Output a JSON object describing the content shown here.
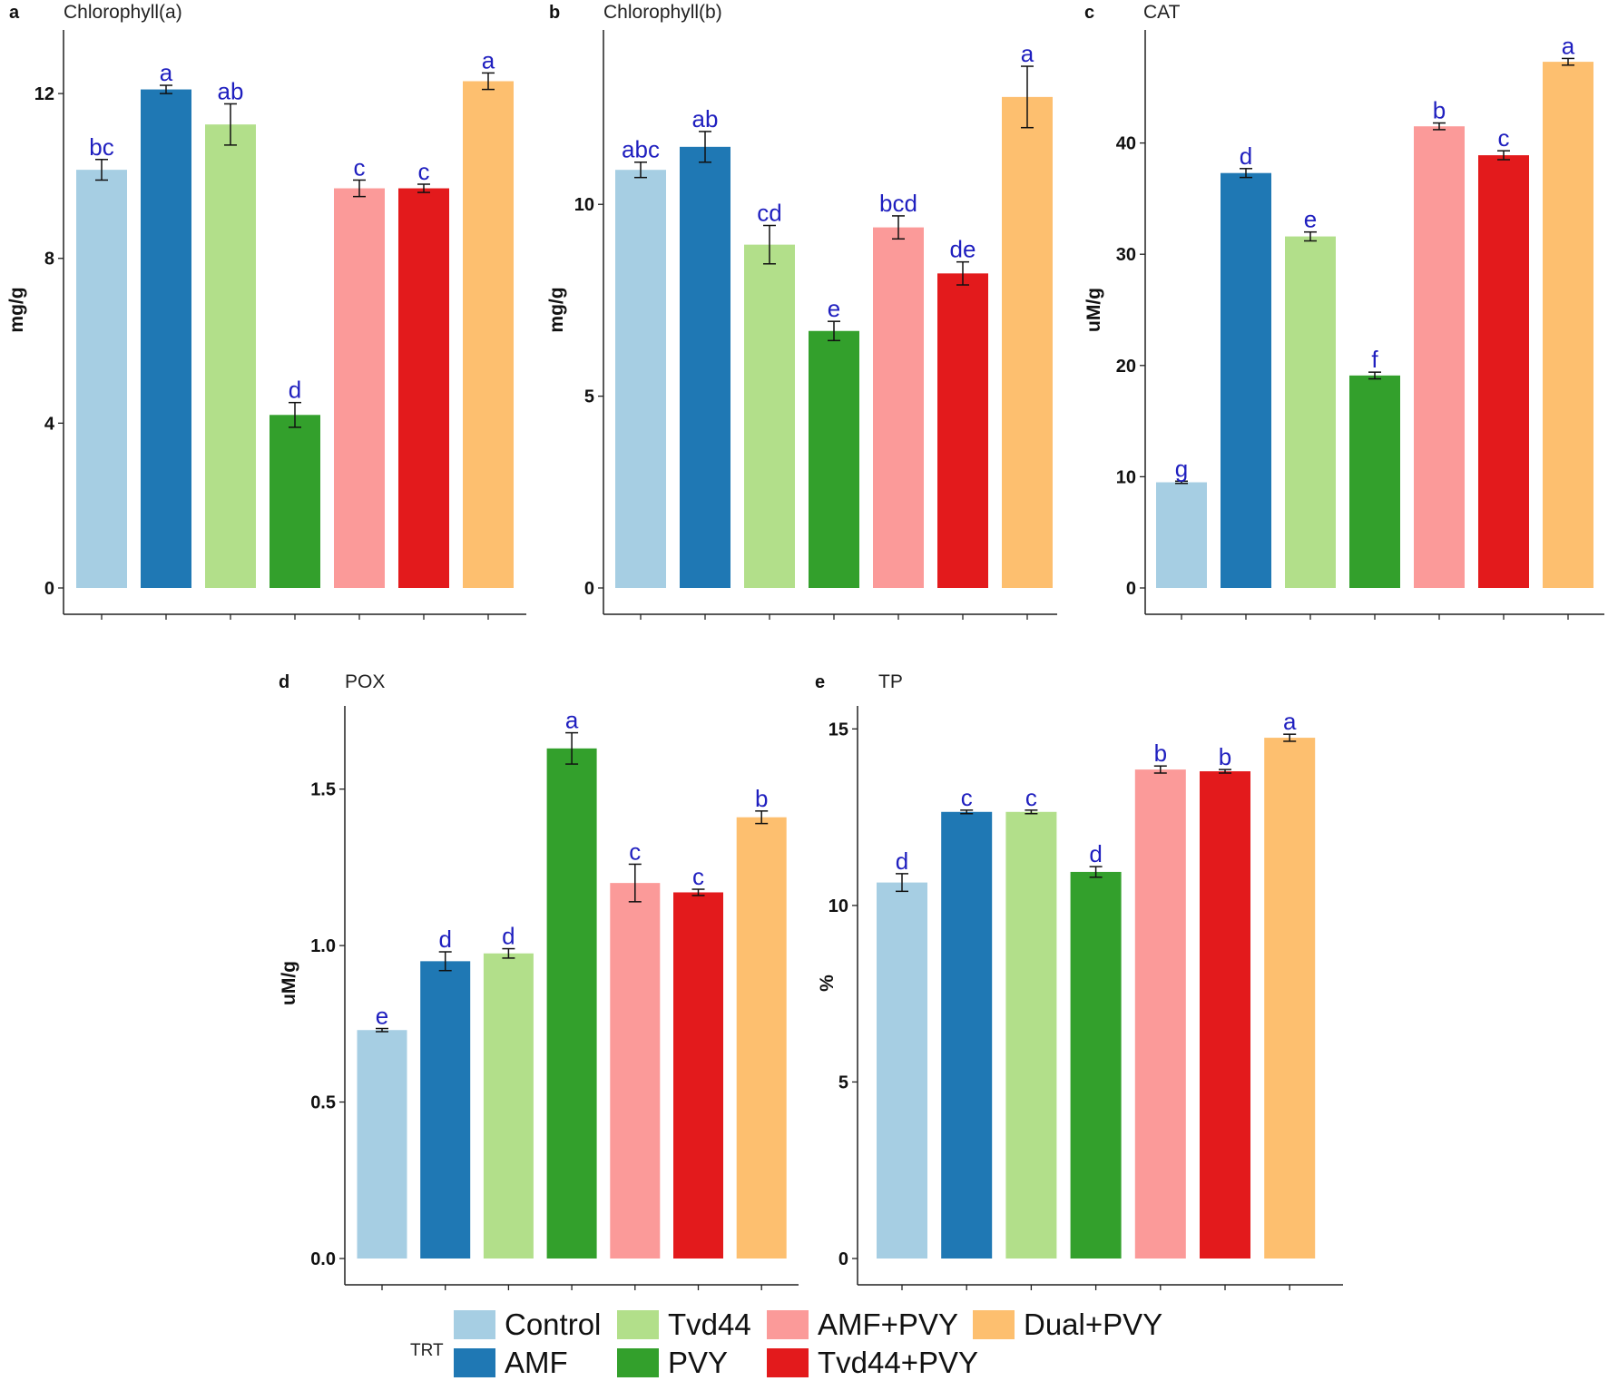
{
  "colors": {
    "Control": "#a6cee3",
    "AMF": "#1f78b4",
    "Tvd44": "#b2df8a",
    "PVY": "#33a02c",
    "AMF+PVY": "#fb9a99",
    "Tvd44+PVY": "#e31a1c",
    "Dual+PVY": "#fdbf6f",
    "letter": "#1f1fbf"
  },
  "legend": {
    "title": "TRT",
    "items": [
      "Control",
      "AMF",
      "Tvd44",
      "PVY",
      "AMF+PVY",
      "Tvd44+PVY",
      "Dual+PVY"
    ]
  },
  "chart_data": [
    {
      "panel": "a",
      "type": "bar",
      "title": "Chlorophyll(a)",
      "ylabel": "mg/g",
      "xlabel": "",
      "ylim": [
        0,
        13.5
      ],
      "yticks": [
        "0",
        "4",
        "8",
        "12"
      ],
      "ytick_values": [
        0,
        4,
        8,
        12
      ],
      "categories": [
        "Control",
        "AMF",
        "Tvd44",
        "PVY",
        "AMF+PVY",
        "Tvd44+PVY",
        "Dual+PVY"
      ],
      "values": [
        10.15,
        12.1,
        11.25,
        4.2,
        9.7,
        9.7,
        12.3
      ],
      "errors": [
        0.25,
        0.1,
        0.5,
        0.3,
        0.2,
        0.1,
        0.2
      ],
      "letters": [
        "bc",
        "a",
        "ab",
        "d",
        "c",
        "c",
        "a"
      ]
    },
    {
      "panel": "b",
      "type": "bar",
      "title": "Chlorophyll(b)",
      "ylabel": "mg/g",
      "xlabel": "",
      "ylim": [
        0,
        14.5
      ],
      "yticks": [
        "0",
        "5",
        "10"
      ],
      "ytick_values": [
        0,
        5,
        10
      ],
      "categories": [
        "Control",
        "AMF",
        "Tvd44",
        "PVY",
        "AMF+PVY",
        "Tvd44+PVY",
        "Dual+PVY"
      ],
      "values": [
        10.9,
        11.5,
        8.95,
        6.7,
        9.4,
        8.2,
        12.8
      ],
      "errors": [
        0.2,
        0.4,
        0.5,
        0.25,
        0.3,
        0.3,
        0.8
      ],
      "letters": [
        "abc",
        "ab",
        "cd",
        "e",
        "bcd",
        "de",
        "a"
      ]
    },
    {
      "panel": "c",
      "type": "bar",
      "title": "CAT",
      "ylabel": "uM/g",
      "xlabel": "",
      "ylim": [
        0,
        50
      ],
      "yticks": [
        "0",
        "10",
        "20",
        "30",
        "40"
      ],
      "ytick_values": [
        0,
        10,
        20,
        30,
        40
      ],
      "categories": [
        "Control",
        "AMF",
        "Tvd44",
        "PVY",
        "AMF+PVY",
        "Tvd44+PVY",
        "Dual+PVY"
      ],
      "values": [
        9.5,
        37.3,
        31.6,
        19.1,
        41.5,
        38.9,
        47.3
      ],
      "errors": [
        0.1,
        0.4,
        0.4,
        0.3,
        0.3,
        0.4,
        0.3
      ],
      "letters": [
        "g",
        "d",
        "e",
        "f",
        "b",
        "c",
        "a"
      ]
    },
    {
      "panel": "d",
      "type": "bar",
      "title": "POX",
      "ylabel": "uM/g",
      "xlabel": "",
      "ylim": [
        0,
        1.76
      ],
      "yticks": [
        "0.0",
        "0.5",
        "1.0",
        "1.5"
      ],
      "ytick_values": [
        0,
        0.5,
        1.0,
        1.5
      ],
      "categories": [
        "Control",
        "AMF",
        "Tvd44",
        "PVY",
        "AMF+PVY",
        "Tvd44+PVY",
        "Dual+PVY"
      ],
      "values": [
        0.73,
        0.95,
        0.975,
        1.63,
        1.2,
        1.17,
        1.41
      ],
      "errors": [
        0.005,
        0.03,
        0.015,
        0.05,
        0.06,
        0.01,
        0.02
      ],
      "letters": [
        "e",
        "d",
        "d",
        "a",
        "c",
        "c",
        "b"
      ]
    },
    {
      "panel": "e",
      "type": "bar",
      "title": "TP",
      "ylabel": "%",
      "xlabel": "",
      "ylim": [
        0,
        15.6
      ],
      "yticks": [
        "0",
        "5",
        "10",
        "15"
      ],
      "ytick_values": [
        0,
        5,
        10,
        15
      ],
      "categories": [
        "Control",
        "AMF",
        "Tvd44",
        "PVY",
        "AMF+PVY",
        "Tvd44+PVY",
        "Dual+PVY"
      ],
      "values": [
        10.65,
        12.65,
        12.65,
        10.95,
        13.85,
        13.8,
        14.75
      ],
      "errors": [
        0.25,
        0.05,
        0.05,
        0.15,
        0.1,
        0.05,
        0.1
      ],
      "letters": [
        "d",
        "c",
        "c",
        "d",
        "b",
        "b",
        "a"
      ]
    }
  ]
}
